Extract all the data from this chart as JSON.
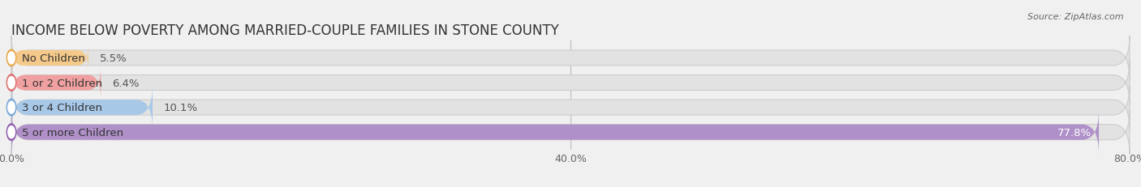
{
  "title": "INCOME BELOW POVERTY AMONG MARRIED-COUPLE FAMILIES IN STONE COUNTY",
  "source": "Source: ZipAtlas.com",
  "categories": [
    "No Children",
    "1 or 2 Children",
    "3 or 4 Children",
    "5 or more Children"
  ],
  "values": [
    5.5,
    6.4,
    10.1,
    77.8
  ],
  "labels": [
    "5.5%",
    "6.4%",
    "10.1%",
    "77.8%"
  ],
  "bar_colors": [
    "#f5c98a",
    "#f0a0a0",
    "#a8c8e8",
    "#b090c8"
  ],
  "bar_edge_colors": [
    "#e8a84a",
    "#e07070",
    "#78a8d8",
    "#9060b0"
  ],
  "label_colors": [
    "#555555",
    "#555555",
    "#555555",
    "#ffffff"
  ],
  "background_color": "#f0f0f0",
  "bar_bg_color": "#e2e2e2",
  "xlim": [
    0,
    80
  ],
  "xticks": [
    0.0,
    40.0,
    80.0
  ],
  "xticklabels": [
    "0.0%",
    "40.0%",
    "80.0%"
  ],
  "title_fontsize": 12,
  "label_fontsize": 9.5,
  "value_fontsize": 9.5,
  "tick_fontsize": 9,
  "bar_height": 0.62,
  "figsize": [
    14.06,
    2.32
  ],
  "dpi": 100
}
